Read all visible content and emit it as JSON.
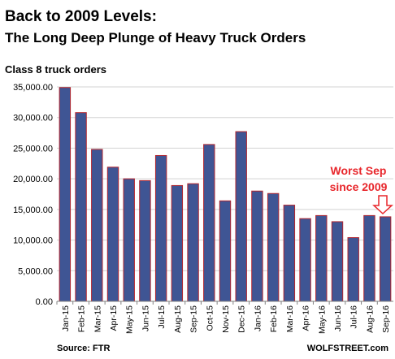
{
  "chart_data": {
    "type": "bar",
    "title": "Back to 2009 Levels:",
    "subtitle": "The Long Deep Plunge of Heavy Truck Orders",
    "ylabel": "Class 8 truck orders",
    "xlabel": "",
    "ylim": [
      0,
      35000
    ],
    "yticks": [
      "0.00",
      "5,000.00",
      "10,000.00",
      "15,000.00",
      "20,000.00",
      "25,000.00",
      "30,000.00",
      "35,000.00"
    ],
    "grid": true,
    "categories": [
      "Jan-15",
      "Feb-15",
      "Mar-15",
      "Apr-15",
      "May-15",
      "Jun-15",
      "Jul-15",
      "Aug-15",
      "Sep-15",
      "Oct-15",
      "Nov-15",
      "Dec-15",
      "Jan-16",
      "Feb-16",
      "Mar-16",
      "Apr-16",
      "May-16",
      "Jun-16",
      "Jul-16",
      "Aug-16",
      "Sep-16"
    ],
    "values": [
      34900,
      30800,
      24800,
      21900,
      20000,
      19700,
      23800,
      18900,
      19200,
      25600,
      16400,
      27700,
      18000,
      17600,
      15700,
      13500,
      14000,
      13000,
      10400,
      14000,
      13800
    ],
    "annotation_line1": "Worst Sep",
    "annotation_line2": "since 2009",
    "source": "Source:  FTR",
    "brand": "WOLFSTREET.com",
    "colors": {
      "bar_fill": "#3f5594",
      "bar_edge": "#b1252f",
      "annotation": "#e8262b",
      "grid": "#d3d3d3"
    }
  }
}
